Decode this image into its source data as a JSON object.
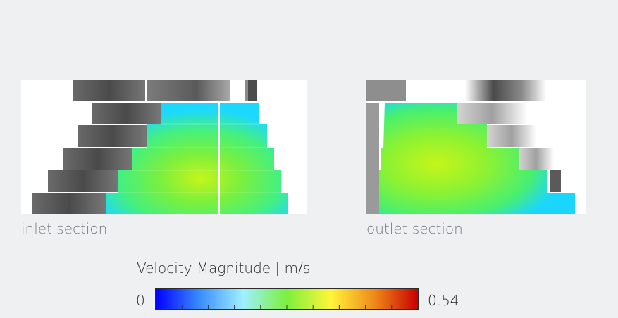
{
  "sections": [
    {
      "id": "inlet",
      "label": "inlet section"
    },
    {
      "id": "outlet",
      "label": "outlet section"
    }
  ],
  "legend": {
    "title": "Velocity Magnitude | m/s",
    "min_label": "0",
    "max_label": "0.54",
    "min": 0,
    "max": 0.54,
    "colormap": [
      "#0000ff",
      "#3a8cff",
      "#9ff0ff",
      "#7cf03c",
      "#fff53a",
      "#ef8a1a",
      "#c80000"
    ]
  }
}
